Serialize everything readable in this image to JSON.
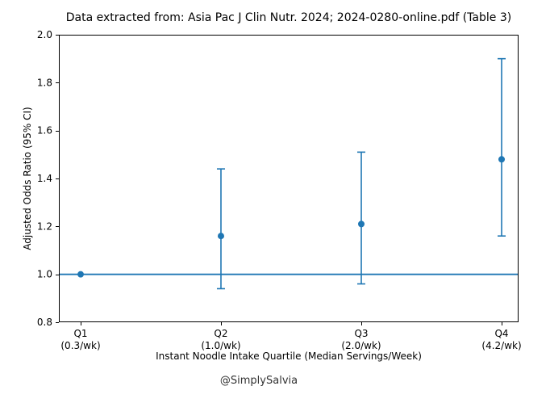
{
  "chart_data": {
    "type": "scatter",
    "title": "Data extracted from: Asia Pac J Clin Nutr. 2024; 2024-0280-online.pdf (Table 3)",
    "xlabel": "Instant Noodle Intake Quartile (Median Servings/Week)",
    "ylabel": "Adjusted Odds Ratio (95% CI)",
    "watermark": "@SimplySalvia",
    "categories": [
      "Q1",
      "Q2",
      "Q3",
      "Q4"
    ],
    "category_sublabels": [
      "(0.3/wk)",
      "(1.0/wk)",
      "(2.0/wk)",
      "(4.2/wk)"
    ],
    "series": [
      {
        "name": "Adjusted Odds Ratio (95% CI)",
        "values": [
          1.0,
          1.16,
          1.21,
          1.48
        ],
        "ci_low": [
          null,
          0.94,
          0.96,
          1.16
        ],
        "ci_high": [
          null,
          1.44,
          1.51,
          1.9
        ]
      }
    ],
    "reference_line_y": 1.0,
    "ylim": [
      0.8,
      2.0
    ],
    "yticks": [
      0.8,
      1.0,
      1.2,
      1.4,
      1.6,
      1.8,
      2.0
    ],
    "ytick_labels": [
      "0.8",
      "1.0",
      "1.2",
      "1.4",
      "1.6",
      "1.8",
      "2.0"
    ],
    "grid": false,
    "legend": null,
    "marker": "circle",
    "colors": {
      "series": "#1f77b4",
      "reference_line": "#1f77b4",
      "axis": "#000000",
      "text": "#000000",
      "watermark": "#333333",
      "background": "#ffffff"
    }
  }
}
